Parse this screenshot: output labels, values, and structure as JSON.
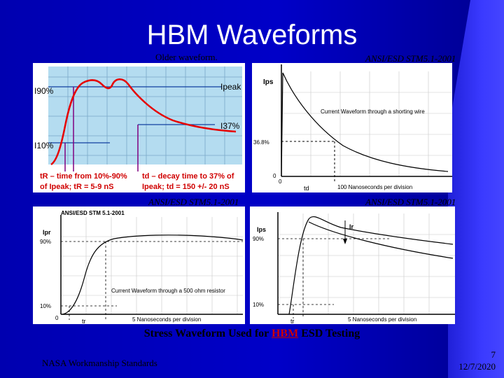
{
  "slide": {
    "title": "HBM Waveforms",
    "caption_prefix": "Stress Waveform Used for ",
    "caption_link": "HBM",
    "caption_suffix": " ESD Testing",
    "footer": "NASA Workmanship Standards",
    "page_number": "7",
    "date": "12/7/2020"
  },
  "labels": {
    "older_waveform": "Older waveform.",
    "top_right": "ANSI/ESD STM5.1-2001",
    "bottom_left": "ANSI/ESD STM5.1-2001",
    "bottom_right": "ANSI/ESD STM5.1-2001"
  },
  "panel1": {
    "i90": "I90%",
    "i10": "I10%",
    "ipeak": "Ipeak",
    "i37": "I37%",
    "tr_text1": "tR – time from 10%-90%",
    "tr_text2": "of Ipeak; tR = 5-9 nS",
    "td_text1": "td – decay time to 37% of",
    "td_text2": "Ipeak; td = 150 +/- 20 nS",
    "colors": {
      "background": "#b4dcf0",
      "curve": "#e60000",
      "grid": "#7aa8c8",
      "level_lines": "#1040a0"
    }
  },
  "panel2": {
    "ips": "Ips",
    "pct": "36.8%",
    "zero": "0",
    "origin": "0",
    "td": "td",
    "axis_caption": "100 Nanoseconds per division",
    "curve_caption": "Current Waveform through a shorting wire"
  },
  "panel3": {
    "header": "ANSI/ESD STM 5.1-2001",
    "ipr": "Ipr",
    "p90": "90%",
    "p10": "10%",
    "zero": "0",
    "tr": "tr",
    "curve_caption": "Current Waveform through a 500 ohm resistor",
    "axis_caption": "5 Nanoseconds per division"
  },
  "panel4": {
    "ips": "Ips",
    "p90": "90%",
    "p10": "10%",
    "tr_bottom": "tr",
    "tr_top": "Ir",
    "axis_caption": "5 Nanoseconds per division"
  }
}
